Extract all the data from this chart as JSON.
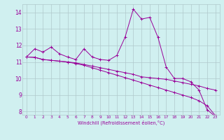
{
  "xlabel": "Windchill (Refroidissement éolien,°C)",
  "background_color": "#d0f0f0",
  "line_color": "#990099",
  "grid_color": "#b0c8cc",
  "xlim": [
    -0.5,
    23.5
  ],
  "ylim": [
    7.8,
    14.5
  ],
  "yticks": [
    8,
    9,
    10,
    11,
    12,
    13,
    14
  ],
  "xticks": [
    0,
    1,
    2,
    3,
    4,
    5,
    6,
    7,
    8,
    9,
    10,
    11,
    12,
    13,
    14,
    15,
    16,
    17,
    18,
    19,
    20,
    21,
    22,
    23
  ],
  "line1_x": [
    0,
    1,
    2,
    3,
    4,
    5,
    6,
    7,
    8,
    9,
    10,
    11,
    12,
    13,
    14,
    15,
    16,
    17,
    18,
    19,
    20,
    21,
    22,
    23
  ],
  "line1_y": [
    11.3,
    11.8,
    11.6,
    11.9,
    11.5,
    11.3,
    11.15,
    11.8,
    11.3,
    11.15,
    11.1,
    11.4,
    12.5,
    14.2,
    13.6,
    13.7,
    12.5,
    10.7,
    10.0,
    10.0,
    9.8,
    9.3,
    8.1,
    7.7
  ],
  "line2_x": [
    0,
    1,
    2,
    3,
    4,
    5,
    6,
    7,
    8,
    9,
    10,
    11,
    12,
    13,
    14,
    15,
    16,
    17,
    18,
    19,
    20,
    21,
    22,
    23
  ],
  "line2_y": [
    11.3,
    11.28,
    11.15,
    11.1,
    11.05,
    11.0,
    10.95,
    10.85,
    10.75,
    10.65,
    10.55,
    10.45,
    10.35,
    10.25,
    10.1,
    10.05,
    10.0,
    9.95,
    9.85,
    9.75,
    9.65,
    9.55,
    9.4,
    9.3
  ],
  "line3_x": [
    0,
    1,
    2,
    3,
    4,
    5,
    6,
    7,
    8,
    9,
    10,
    11,
    12,
    13,
    14,
    15,
    16,
    17,
    18,
    19,
    20,
    21,
    22,
    23
  ],
  "line3_y": [
    11.3,
    11.28,
    11.15,
    11.1,
    11.05,
    11.0,
    10.9,
    10.8,
    10.65,
    10.5,
    10.35,
    10.2,
    10.05,
    9.9,
    9.75,
    9.6,
    9.45,
    9.3,
    9.15,
    9.0,
    8.85,
    8.65,
    8.35,
    7.75
  ]
}
